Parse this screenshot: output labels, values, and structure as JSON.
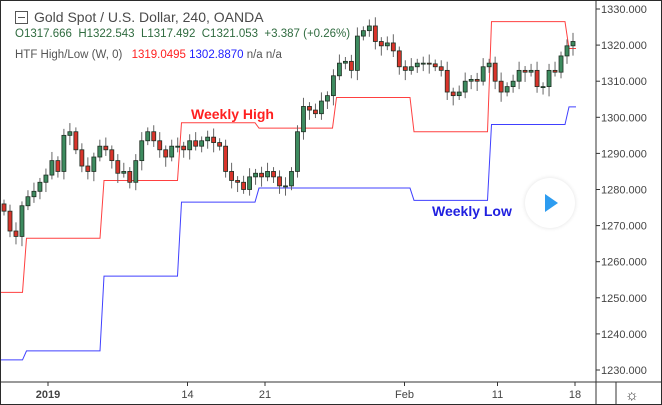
{
  "header": {
    "title": "Gold Spot / U.S. Dollar, 240, OANDA",
    "ohlc": {
      "open": "O1317.666",
      "high": "H1322.543",
      "low": "L1317.492",
      "close": "C1321.053",
      "change": "+3.387 (+0.26%)"
    },
    "indicator": {
      "name": "HTF High/Low (W, 0)",
      "high_value": "1319.0495",
      "low_value": "1302.8870",
      "extra": "n/a n/a"
    }
  },
  "labels": {
    "weekly_high": "Weekly High",
    "weekly_low": "Weekly Low"
  },
  "colors": {
    "up": "#3d8b5f",
    "down": "#d9342b",
    "weekly_high": "#ff4040",
    "weekly_low": "#4040ff",
    "play": "#2d9cf0"
  },
  "icons": {
    "collapse": "minus-square-icon",
    "play": "play-icon",
    "settings": "gear-icon"
  },
  "chart_data": {
    "type": "candlestick",
    "symbol": "XAUUSD",
    "timeframe": "240",
    "ylim": [
      1227,
      1332
    ],
    "y_ticks": [
      "1330.000",
      "1320.000",
      "1310.000",
      "1300.000",
      "1290.000",
      "1280.000",
      "1270.000",
      "1260.000",
      "1250.000",
      "1240.000",
      "1230.000"
    ],
    "x_ticks": [
      {
        "label": "2019",
        "date": "2019-01-01"
      },
      {
        "label": "14",
        "date": "2019-01-14"
      },
      {
        "label": "21",
        "date": "2019-01-21"
      },
      {
        "label": "Feb",
        "date": "2019-02-01"
      },
      {
        "label": "11",
        "date": "2019-02-11"
      },
      {
        "label": "18",
        "date": "2019-02-18"
      }
    ],
    "closes": [
      1274,
      1268.5,
      1267,
      1275.5,
      1278,
      1279.5,
      1282,
      1284,
      1288,
      1285,
      1295,
      1296,
      1291,
      1286.5,
      1285,
      1289,
      1292,
      1291,
      1288,
      1284.5,
      1285,
      1282,
      1288,
      1293.5,
      1296,
      1293.5,
      1291,
      1289,
      1292,
      1292,
      1291,
      1293.5,
      1292,
      1293.5,
      1294.5,
      1293,
      1292,
      1285,
      1282.5,
      1282,
      1280,
      1283.5,
      1284.5,
      1283.5,
      1285,
      1283.5,
      1281,
      1281,
      1285,
      1296,
      1303,
      1302,
      1301,
      1304.5,
      1306,
      1311.5,
      1315,
      1315.5,
      1313,
      1322.5,
      1324,
      1325.3,
      1321,
      1319.8,
      1320.6,
      1318.4,
      1314,
      1313,
      1314,
      1315,
      1315,
      1314.8,
      1314,
      1313,
      1307,
      1306,
      1307,
      1310,
      1310.5,
      1310,
      1314,
      1315,
      1310,
      1307,
      1308.5,
      1310,
      1313,
      1312.5,
      1313,
      1308.5,
      1308.5,
      1313,
      1312.5,
      1317,
      1319.8,
      1321
    ],
    "weekly_levels": [
      {
        "week": "2018-12-24",
        "high": 1251.5,
        "low": 1232.8
      },
      {
        "week": "2018-12-31",
        "high": 1266.5,
        "low": 1235.3
      },
      {
        "week": "2019-01-07",
        "high": 1282.5,
        "low": 1256.0
      },
      {
        "week": "2019-01-14",
        "high": 1298.5,
        "low": 1276.5
      },
      {
        "week": "2019-01-21",
        "high": 1297.0,
        "low": 1280.4
      },
      {
        "week": "2019-01-28",
        "high": 1305.5,
        "low": 1280.4
      },
      {
        "week": "2019-02-04",
        "high": 1296.0,
        "low": 1277.0
      },
      {
        "week": "2019-02-11",
        "high": 1326.5,
        "low": 1298.0
      },
      {
        "week": "2019-02-18",
        "high": 1319.0495,
        "low": 1302.887
      }
    ]
  }
}
